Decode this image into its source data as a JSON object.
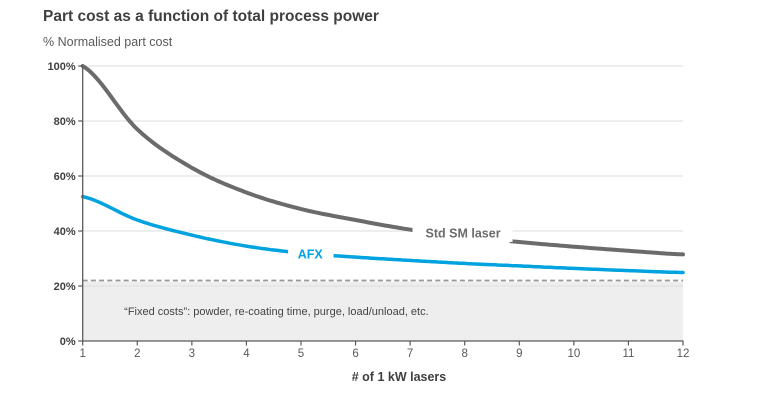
{
  "header": {
    "title": "Part cost as a function of total process power",
    "subtitle": "% Normalised part cost"
  },
  "chart_data": {
    "type": "line",
    "title": "Part cost as a function of total process power",
    "ylabel": "% Normalised part cost",
    "xlabel": "# of 1 kW lasers",
    "x": [
      1,
      2,
      3,
      4,
      5,
      6,
      7,
      8,
      9,
      10,
      11,
      12
    ],
    "xlim": [
      1,
      12
    ],
    "ylim": [
      0,
      100
    ],
    "yticks": [
      0,
      20,
      40,
      60,
      80,
      100
    ],
    "ytick_suffix": "%",
    "grid": "horizontal",
    "grid_color": "#dedede",
    "axis_color": "#595959",
    "legend_position": "inline-curve-labels",
    "series": [
      {
        "name": "Std SM laser",
        "color": "#6b6b6b",
        "line_width": 4,
        "values": [
          100,
          77,
          63,
          54,
          48,
          44,
          40.5,
          38,
          36,
          34.3,
          32.8,
          31.5
        ],
        "label_gap_x": [
          7.08,
          8.84
        ],
        "label_pos": {
          "x": 7.97,
          "y": 39.3
        }
      },
      {
        "name": "AFX",
        "color": "#00a3e0",
        "line_width": 3.5,
        "values": [
          52.5,
          44,
          38.5,
          34.5,
          32,
          30.5,
          29.3,
          28.2,
          27.3,
          26.4,
          25.6,
          24.9
        ],
        "label_gap_x": [
          4.8,
          5.56
        ],
        "label_pos": {
          "x": 5.17,
          "y": 31.7
        }
      }
    ],
    "reference_line": {
      "value": 22,
      "style": "dashed",
      "color": "#999999"
    },
    "shaded_region": {
      "from": 0,
      "to": 22,
      "fill": "#eeeeee",
      "label": "“Fixed costs”: powder, re-coating time, purge, load/unload, etc.",
      "label_pos": {
        "x": 4.55,
        "y": 11
      }
    }
  }
}
